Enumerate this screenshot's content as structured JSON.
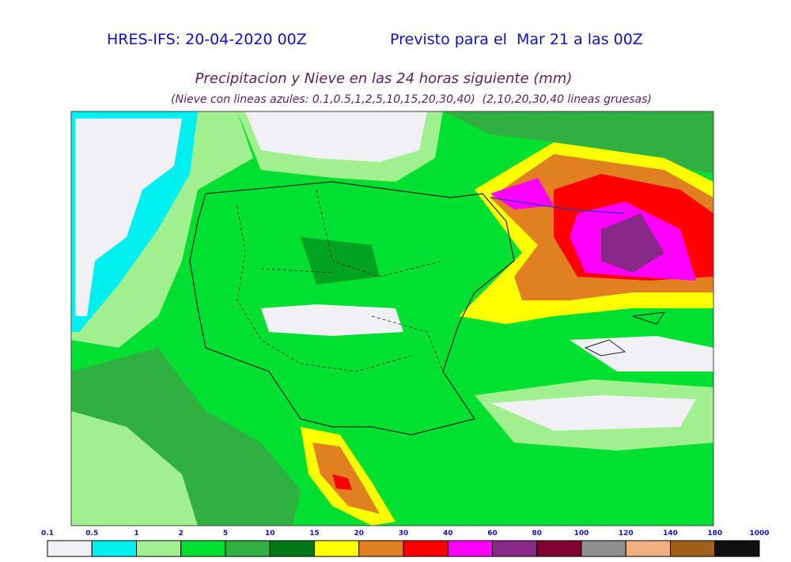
{
  "header": {
    "run": "HRES-IFS: 20-04-2020 00Z",
    "valid": "Previsto para el  Mar 21 a las 00Z"
  },
  "title": "Precipitacion y Nieve en las 24 horas siguiente (mm)",
  "subtitle": "(Nieve con lineas azules: 0.1,0.5,1,2,5,10,15,20,30,40)  (2,10,20,30,40 lineas gruesas)",
  "legend": {
    "labels": [
      "0.1",
      "0.5",
      "1",
      "2",
      "5",
      "10",
      "15",
      "20",
      "30",
      "40",
      "60",
      "80",
      "100",
      "120",
      "140",
      "180",
      "1000"
    ],
    "colors": [
      "#f0f0f5",
      "#00f0f0",
      "#a0f090",
      "#00e030",
      "#30b040",
      "#007818",
      "#ffff00",
      "#e08020",
      "#ff0000",
      "#ff00ff",
      "#882888",
      "#800030",
      "#909090",
      "#f0b080",
      "#a06018",
      "#101010"
    ]
  }
}
